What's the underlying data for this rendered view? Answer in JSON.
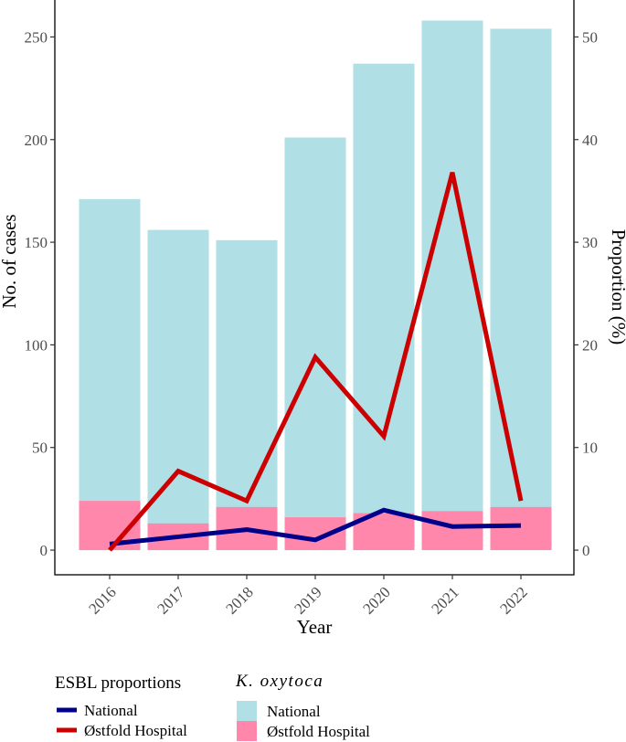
{
  "chart_data": {
    "type": "bar",
    "categories": [
      "2016",
      "2017",
      "2018",
      "2019",
      "2020",
      "2021",
      "2022"
    ],
    "series": [
      {
        "name": "National",
        "kind": "bar",
        "color": "#b0dfe5",
        "values": [
          171,
          156,
          151,
          201,
          237,
          258,
          254
        ]
      },
      {
        "name": "Østfold Hospital",
        "kind": "bar",
        "color": "#ff87ab",
        "values": [
          24,
          13,
          21,
          16,
          18,
          19,
          21
        ]
      },
      {
        "name": "National",
        "kind": "line",
        "axis": "right",
        "color": "#00008b",
        "values": [
          0.6,
          1.3,
          2.0,
          1.0,
          3.9,
          2.3,
          2.4
        ]
      },
      {
        "name": "Østfold Hospital",
        "kind": "line",
        "axis": "right",
        "color": "#cc0000",
        "values": [
          0.0,
          7.7,
          4.8,
          18.8,
          11.1,
          36.8,
          4.8
        ]
      }
    ],
    "xlabel": "Year",
    "ylabel": "No. of cases",
    "y2label": "Proportion (%)",
    "ylim": [
      -12,
      268
    ],
    "y2lim": [
      -2.4,
      53.6
    ],
    "yticks": [
      "0",
      "50",
      "100",
      "150",
      "200",
      "250"
    ],
    "y2ticks": [
      "0",
      "10",
      "20",
      "30",
      "40",
      "50"
    ],
    "legend": {
      "lines_title": "ESBL proportions",
      "bars_title": "K. oxytoca",
      "placement": "bottom"
    }
  }
}
